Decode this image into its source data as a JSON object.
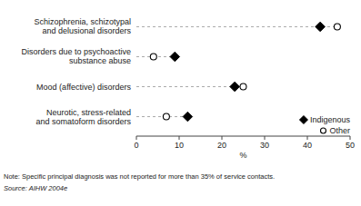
{
  "chart_data": {
    "type": "dot",
    "orientation": "horizontal",
    "categories": [
      "Schizophrenia, schizotypal\nand delusional disorders",
      "Disorders due to psychoactive\nsubstance abuse",
      "Mood (affective) disorders",
      "Neurotic, stress-related\nand somatoform disorders"
    ],
    "series": [
      {
        "name": "Indigenous",
        "color": "#000000",
        "marker": "diamond",
        "values": [
          43,
          9,
          23,
          12
        ]
      },
      {
        "name": "Other",
        "color": "#000000",
        "marker": "circle",
        "values": [
          47,
          4,
          25,
          7
        ]
      }
    ],
    "x_label": "%",
    "xlim": [
      0,
      50
    ],
    "xticks": [
      0,
      10,
      20,
      30,
      40,
      50
    ],
    "grid": false,
    "legend": "lower right",
    "annotations": [
      "Note:  Specific principal diagnosis was not reported for more than 35% of service contacts.",
      "Source:  AIHW 2004e"
    ]
  }
}
